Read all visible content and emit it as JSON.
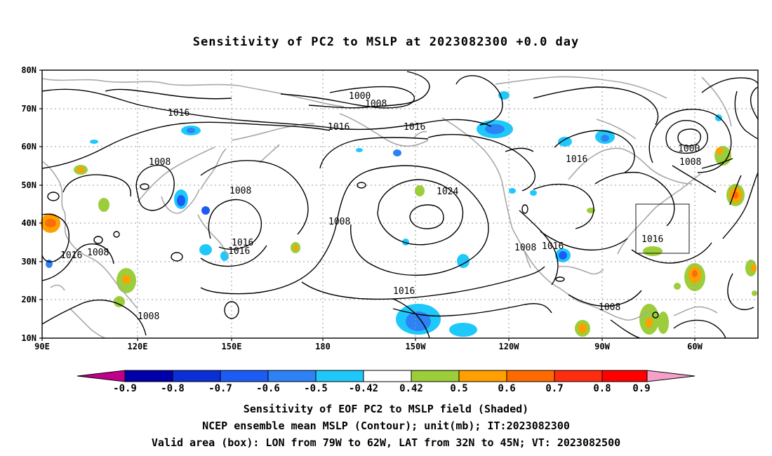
{
  "title": "Sensitivity of PC2 to MSLP at 2023082300 +0.0 day",
  "axes": {
    "lat_labels": [
      "80N",
      "70N",
      "60N",
      "50N",
      "40N",
      "30N",
      "20N",
      "10N"
    ],
    "lon_labels": [
      "90E",
      "120E",
      "150E",
      "180",
      "150W",
      "120W",
      "90W",
      "60W"
    ]
  },
  "colorbar": {
    "ticks": [
      "-0.9",
      "-0.8",
      "-0.7",
      "-0.6",
      "-0.5",
      "-0.42",
      "0.42",
      "0.5",
      "0.6",
      "0.7",
      "0.8",
      "0.9"
    ],
    "colors": [
      "#c0008c",
      "#0000aa",
      "#0a2fd6",
      "#1c5cf5",
      "#2d82f5",
      "#1fc8fa",
      "#ffffff",
      "#9ccd3a",
      "#ffa000",
      "#ff6a00",
      "#ff2d10",
      "#ff0000",
      "#f5a0c8"
    ]
  },
  "contour_labels": [
    "1000",
    "1008",
    "1016",
    "1016",
    "1016",
    "1008",
    "1024",
    "1008",
    "1016",
    "1016",
    "1016",
    "1008",
    "1008",
    "1016",
    "1008",
    "1016",
    "1016",
    "1008",
    "1000",
    "1008",
    "1016",
    "1008"
  ],
  "captions": {
    "line1": "Sensitivity of EOF PC2 to MSLP field (Shaded)",
    "line2": "NCEP ensemble mean MSLP (Contour); unit(mb); IT:2023082300",
    "line3": "Valid area (box): LON from 79W to 62W, LAT from 32N to 45N; VT: 2023082500"
  },
  "valid_box": {
    "lon_from": "79W",
    "lon_to": "62W",
    "lat_from": "32N",
    "lat_to": "45N"
  }
}
